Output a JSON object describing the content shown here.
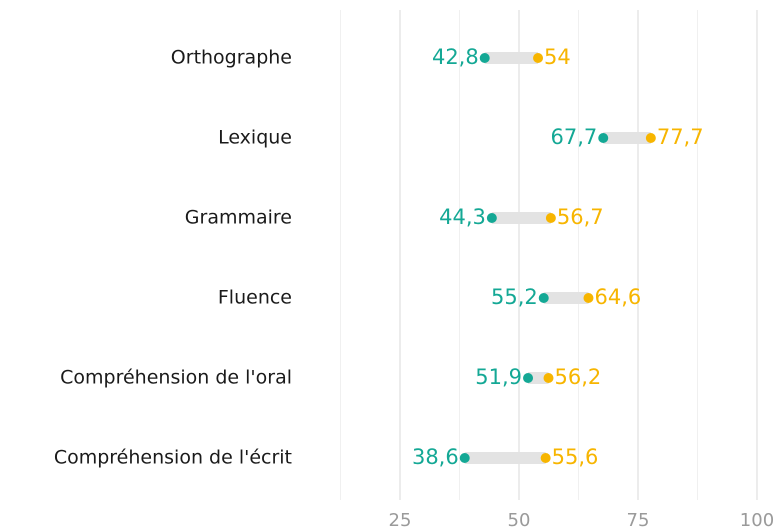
{
  "chart_data": {
    "type": "dumbbell",
    "categories": [
      "Orthographe",
      "Lexique",
      "Grammaire",
      "Fluence",
      "Compréhension de l'oral",
      "Compréhension de l'écrit"
    ],
    "series": [
      {
        "color": "#14a895",
        "values": [
          42.8,
          67.7,
          44.3,
          55.2,
          51.9,
          38.6
        ],
        "value_labels": [
          "42,8",
          "67,7",
          "44,3",
          "55,2",
          "51,9",
          "38,6"
        ]
      },
      {
        "color": "#f7b500",
        "values": [
          54,
          77.7,
          56.7,
          64.6,
          56.2,
          55.6
        ],
        "value_labels": [
          "54",
          "77,7",
          "56,7",
          "64,6",
          "56,2",
          "55,6"
        ]
      }
    ],
    "xlim": [
      10,
      102
    ],
    "xticks": [
      25,
      50,
      75,
      100
    ],
    "xgrid_minor": [
      12.5,
      37.5,
      62.5,
      87.5
    ],
    "grid": true
  }
}
